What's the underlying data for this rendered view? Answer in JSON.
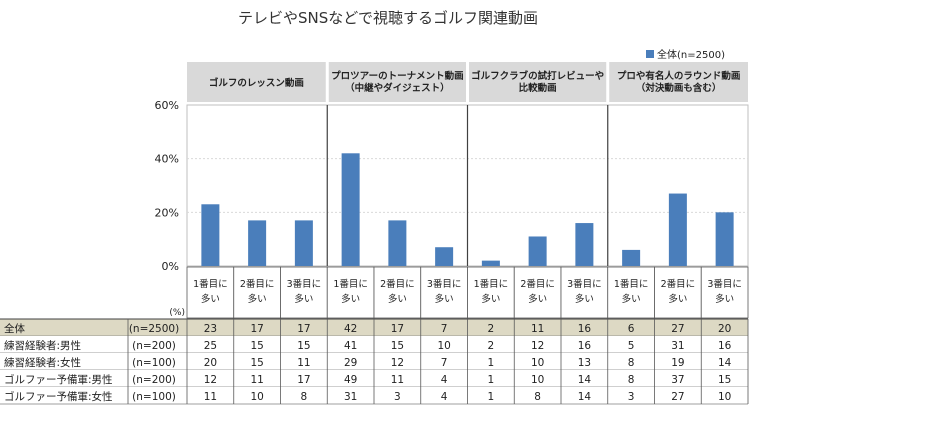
{
  "chart_data": {
    "type": "bar",
    "title": "テレビやSNSなどで視聴するゴルフ関連動画",
    "legend": {
      "label": "全体(n=2500)",
      "position": "top-right"
    },
    "ylim": [
      0,
      60
    ],
    "yticks": [
      "0%",
      "20%",
      "40%",
      "60%"
    ],
    "ytick_values": [
      0,
      20,
      40,
      60
    ],
    "unit_label": "(%)",
    "bar_color": "#4a7ebb",
    "groups": [
      {
        "label_lines": [
          "ゴルフのレッスン動画"
        ]
      },
      {
        "label_lines": [
          "プロツアーのトーナメント動画",
          "（中継やダイジェスト）"
        ]
      },
      {
        "label_lines": [
          "ゴルフクラブの試打レビューや",
          "比較動画"
        ]
      },
      {
        "label_lines": [
          "プロや有名人のラウンド動画",
          "（対決動画も含む）"
        ]
      }
    ],
    "categories": [
      [
        "1番目に",
        "多い"
      ],
      [
        "2番目に",
        "多い"
      ],
      [
        "3番目に",
        "多い"
      ],
      [
        "1番目に",
        "多い"
      ],
      [
        "2番目に",
        "多い"
      ],
      [
        "3番目に",
        "多い"
      ],
      [
        "1番目に",
        "多い"
      ],
      [
        "2番目に",
        "多い"
      ],
      [
        "3番目に",
        "多い"
      ],
      [
        "1番目に",
        "多い"
      ],
      [
        "2番目に",
        "多い"
      ],
      [
        "3番目に",
        "多い"
      ]
    ],
    "values": [
      23,
      17,
      17,
      42,
      17,
      7,
      2,
      11,
      16,
      6,
      27,
      20
    ],
    "table": {
      "rows": [
        {
          "label": "全体",
          "n": "(n=2500)",
          "values": [
            "23",
            "17",
            "17",
            "42",
            "17",
            "7",
            "2",
            "11",
            "16",
            "6",
            "27",
            "20"
          ],
          "highlight": true
        },
        {
          "label": "練習経験者:男性",
          "n": "(n=200)",
          "values": [
            "25",
            "15",
            "15",
            "41",
            "15",
            "10",
            "2",
            "12",
            "16",
            "5",
            "31",
            "16"
          ]
        },
        {
          "label": "練習経験者:女性",
          "n": "(n=100)",
          "values": [
            "20",
            "15",
            "11",
            "29",
            "12",
            "7",
            "1",
            "10",
            "13",
            "8",
            "19",
            "14"
          ]
        },
        {
          "label": "ゴルファー予備軍:男性",
          "n": "(n=200)",
          "values": [
            "12",
            "11",
            "17",
            "49",
            "11",
            "4",
            "1",
            "10",
            "14",
            "8",
            "37",
            "15"
          ]
        },
        {
          "label": "ゴルファー予備軍:女性",
          "n": "(n=100)",
          "values": [
            "11",
            "10",
            "8",
            "31",
            "3",
            "4",
            "1",
            "8",
            "14",
            "3",
            "27",
            "10"
          ]
        }
      ]
    }
  }
}
